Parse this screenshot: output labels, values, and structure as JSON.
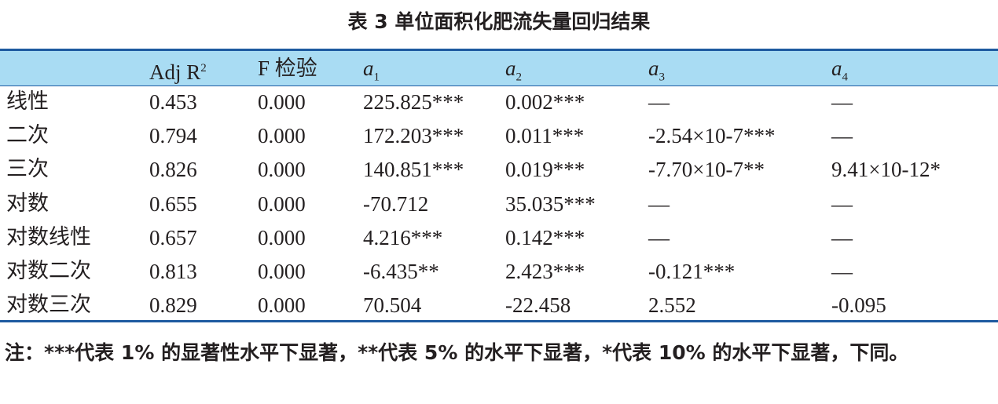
{
  "title": "表 3  单位面积化肥流失量回归结果",
  "table": {
    "headers": [
      {
        "text": "Adj R",
        "sup": "2"
      },
      {
        "text": "F 检验"
      },
      {
        "text": "a",
        "sub": "1"
      },
      {
        "text": "a",
        "sub": "2"
      },
      {
        "text": "a",
        "sub": "3"
      },
      {
        "text": "a",
        "sub": "4"
      }
    ],
    "rows": [
      [
        "线性",
        "0.453",
        "0.000",
        "225.825***",
        "0.002***",
        "—",
        "—"
      ],
      [
        "二次",
        "0.794",
        "0.000",
        "172.203***",
        "0.011***",
        "-2.54×10-7***",
        "—"
      ],
      [
        "三次",
        "0.826",
        "0.000",
        "140.851***",
        "0.019***",
        "-7.70×10-7**",
        "9.41×10-12*"
      ],
      [
        "对数",
        "0.655",
        "0.000",
        "-70.712",
        "35.035***",
        "—",
        "—"
      ],
      [
        "对数线性",
        "0.657",
        "0.000",
        "4.216***",
        "0.142***",
        "—",
        "—"
      ],
      [
        "对数二次",
        "0.813",
        "0.000",
        "-6.435**",
        "2.423***",
        "-0.121***",
        "—"
      ],
      [
        "对数三次",
        "0.829",
        "0.000",
        "70.504",
        "-22.458",
        "2.552",
        "-0.095"
      ]
    ]
  },
  "note": "注：***代表 1% 的显著性水平下显著，**代表 5% 的水平下显著，*代表 10% 的水平下显著，下同。"
}
